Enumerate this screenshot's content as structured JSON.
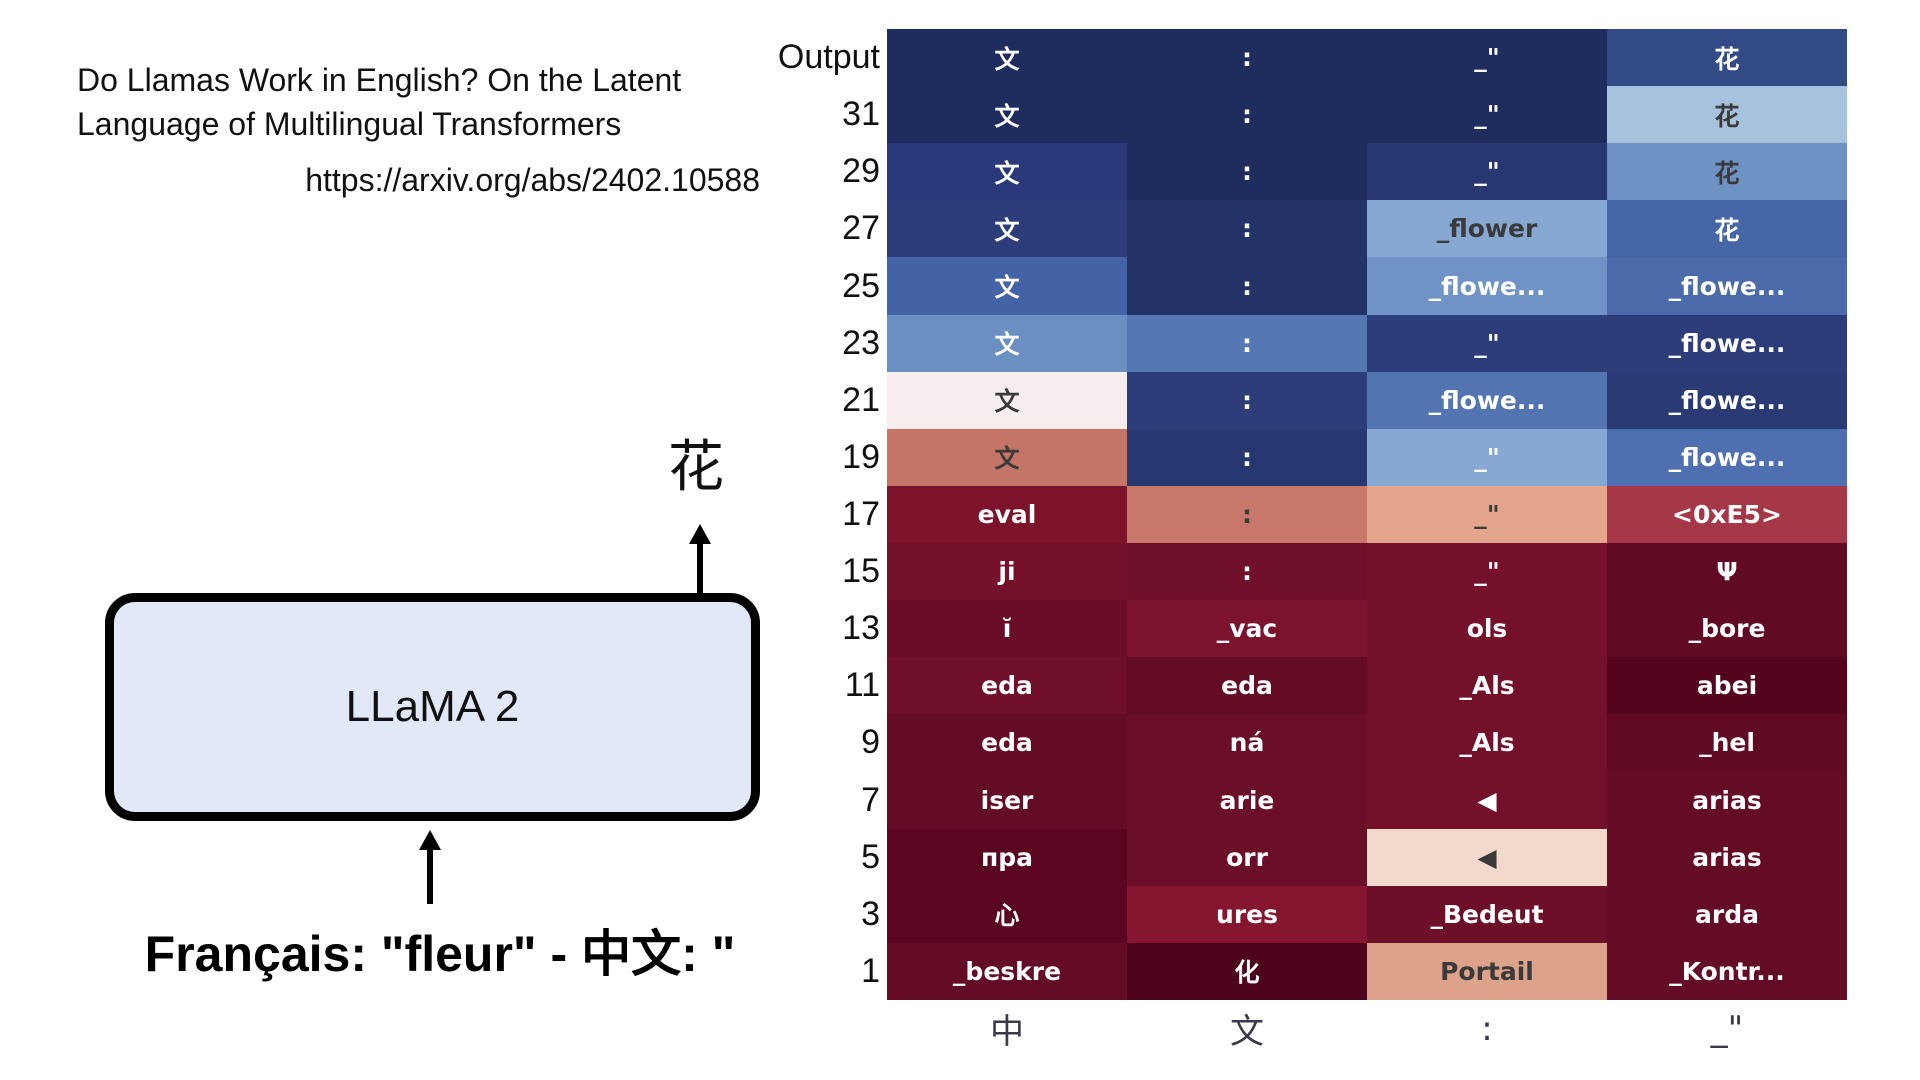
{
  "paper": {
    "title_line1": "Do Llamas Work in English? On the Latent",
    "title_line2": "Language of Multilingual Transformers",
    "url": "https://arxiv.org/abs/2402.10588"
  },
  "diagram": {
    "model_label": "LLaMA 2",
    "output_token": "花",
    "input_prompt": "Français: \"fleur\" - 中文: \""
  },
  "colors": {
    "box_fill": "#e1e8f7",
    "box_border": "#000000"
  },
  "chart_data": {
    "type": "heatmap",
    "title": "",
    "xlabel": "",
    "ylabel": "",
    "x_tick_labels": [
      "中",
      "文",
      ":",
      "_\""
    ],
    "y_tick_labels": [
      "Output",
      "31",
      "29",
      "27",
      "25",
      "23",
      "21",
      "19",
      "17",
      "15",
      "13",
      "11",
      "9",
      "7",
      "5",
      "3",
      "1"
    ],
    "rows": [
      {
        "layer": "Output",
        "tokens": [
          "文",
          ":",
          "_\"",
          "花"
        ],
        "colors": [
          "#1f2d5e",
          "#1f2d5e",
          "#1f2d5e",
          "#324b87"
        ]
      },
      {
        "layer": "31",
        "tokens": [
          "文",
          ":",
          "_\"",
          "花"
        ],
        "colors": [
          "#1f2d5e",
          "#1f2d5e",
          "#1f2d5e",
          "#a6c2dd"
        ]
      },
      {
        "layer": "29",
        "tokens": [
          "文",
          ":",
          "_\"",
          "花"
        ],
        "colors": [
          "#29397a",
          "#1f2d5e",
          "#27376f",
          "#6c93c4"
        ]
      },
      {
        "layer": "27",
        "tokens": [
          "文",
          ":",
          "_flower",
          "花"
        ],
        "colors": [
          "#2c3d7a",
          "#243367",
          "#86a8d2",
          "#4567a8"
        ]
      },
      {
        "layer": "25",
        "tokens": [
          "文",
          ":",
          "_flowe...",
          "_flowe..."
        ],
        "colors": [
          "#4462a6",
          "#243367",
          "#6f93c6",
          "#4a6aaa"
        ]
      },
      {
        "layer": "23",
        "tokens": [
          "文",
          ":",
          "_\"",
          "_flowe..."
        ],
        "colors": [
          "#6a8fc1",
          "#5678b2",
          "#2c3d7a",
          "#2c3d7a"
        ]
      },
      {
        "layer": "21",
        "tokens": [
          "文",
          ":",
          "_flowe...",
          "_flowe..."
        ],
        "colors": [
          "#f7edef",
          "#2c3d7a",
          "#5275b2",
          "#2a3a75"
        ]
      },
      {
        "layer": "19",
        "tokens": [
          "文",
          ":",
          "_\"",
          "_flowe..."
        ],
        "colors": [
          "#c57565",
          "#27376f",
          "#86a8d2",
          "#4f70b0"
        ]
      },
      {
        "layer": "17",
        "tokens": [
          "eval",
          ":",
          "_\"",
          "<0xE5>"
        ],
        "colors": [
          "#7d132b",
          "#c8786a",
          "#e3a58c",
          "#a53746"
        ]
      },
      {
        "layer": "15",
        "tokens": [
          "ji",
          ":",
          "_\"",
          "Ψ"
        ],
        "colors": [
          "#75112a",
          "#70102a",
          "#75112a",
          "#610a24"
        ]
      },
      {
        "layer": "13",
        "tokens": [
          "ĭ",
          "_vac",
          "ols",
          "_bore"
        ],
        "colors": [
          "#6b0d27",
          "#7b132c",
          "#75112a",
          "#610a24"
        ]
      },
      {
        "layer": "11",
        "tokens": [
          "eda",
          "eda",
          "_Als",
          "abei"
        ],
        "colors": [
          "#700f29",
          "#650c25",
          "#73112a",
          "#54051d"
        ]
      },
      {
        "layer": "9",
        "tokens": [
          "eda",
          "ná",
          "_Als",
          "_hel"
        ],
        "colors": [
          "#640b25",
          "#6b0e27",
          "#73112a",
          "#600a24"
        ]
      },
      {
        "layer": "7",
        "tokens": [
          "iser",
          "arie",
          "◀",
          "arias"
        ],
        "colors": [
          "#640b25",
          "#6b0e27",
          "#73112a",
          "#640b25"
        ]
      },
      {
        "layer": "5",
        "tokens": [
          "пра",
          "orr",
          "◀",
          "arias"
        ],
        "colors": [
          "#5a0620",
          "#6b0e27",
          "#f3d8cc",
          "#640b25"
        ]
      },
      {
        "layer": "3",
        "tokens": [
          "心",
          "ures",
          "_Bedeut",
          "arda"
        ],
        "colors": [
          "#5a0620",
          "#86152f",
          "#6d0f28",
          "#640b25"
        ]
      },
      {
        "layer": "1",
        "tokens": [
          "_beskre",
          "化",
          "Portail",
          "_Kontr..."
        ],
        "colors": [
          "#640b25",
          "#4e031c",
          "#dca38a",
          "#640b25"
        ]
      }
    ],
    "dark_text_cells": [
      [
        1,
        3
      ],
      [
        2,
        3
      ],
      [
        3,
        2
      ],
      [
        6,
        0
      ],
      [
        7,
        0
      ],
      [
        8,
        1
      ],
      [
        8,
        2
      ],
      [
        14,
        2
      ],
      [
        16,
        2
      ]
    ],
    "colormap": "RdBu (red = low, blue = high)",
    "grid": false,
    "legend": "none"
  }
}
